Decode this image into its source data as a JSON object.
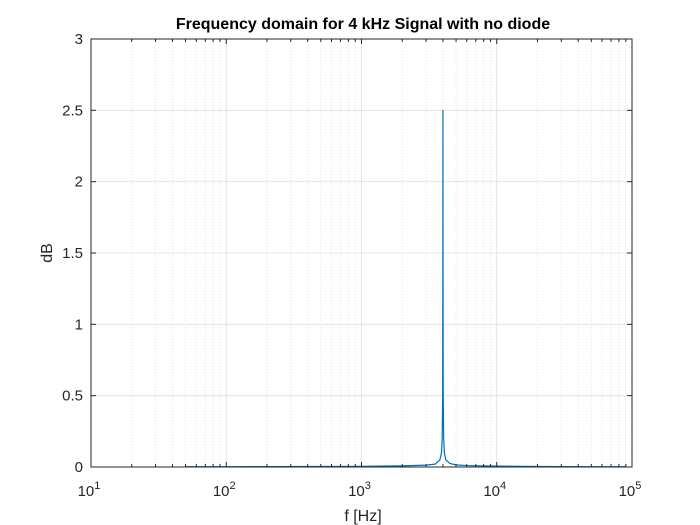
{
  "chart_data": {
    "type": "line",
    "title": "Frequency domain for 4 kHz Signal with no diode",
    "xlabel": "f [Hz]",
    "ylabel": "dB",
    "xscale": "log",
    "xlim": [
      10,
      100000
    ],
    "ylim": [
      0,
      3
    ],
    "grid": true,
    "x_ticks": [
      {
        "value": 10,
        "base": "10",
        "exp": "1"
      },
      {
        "value": 100,
        "base": "10",
        "exp": "2"
      },
      {
        "value": 1000,
        "base": "10",
        "exp": "3"
      },
      {
        "value": 10000,
        "base": "10",
        "exp": "4"
      },
      {
        "value": 100000,
        "base": "10",
        "exp": "5"
      }
    ],
    "y_ticks": [
      {
        "value": 0,
        "label": "0"
      },
      {
        "value": 0.5,
        "label": "0.5"
      },
      {
        "value": 1,
        "label": "1"
      },
      {
        "value": 1.5,
        "label": "1.5"
      },
      {
        "value": 2,
        "label": "2"
      },
      {
        "value": 2.5,
        "label": "2.5"
      },
      {
        "value": 3,
        "label": "3"
      }
    ],
    "series": [
      {
        "color": "#0072BD",
        "x": [
          50,
          100,
          200,
          500,
          1000,
          2000,
          3000,
          3500,
          3800,
          3900,
          3950,
          3980,
          3990,
          4000,
          4010,
          4020,
          4050,
          4100,
          4200,
          4500,
          5000,
          6000,
          10000,
          20000,
          50000,
          90000
        ],
        "y": [
          0.002,
          0.002,
          0.003,
          0.004,
          0.005,
          0.008,
          0.013,
          0.02,
          0.05,
          0.1,
          0.2,
          0.5,
          1.1,
          2.5,
          1.1,
          0.5,
          0.2,
          0.1,
          0.05,
          0.025,
          0.015,
          0.01,
          0.006,
          0.004,
          0.002,
          0.002
        ]
      }
    ]
  }
}
